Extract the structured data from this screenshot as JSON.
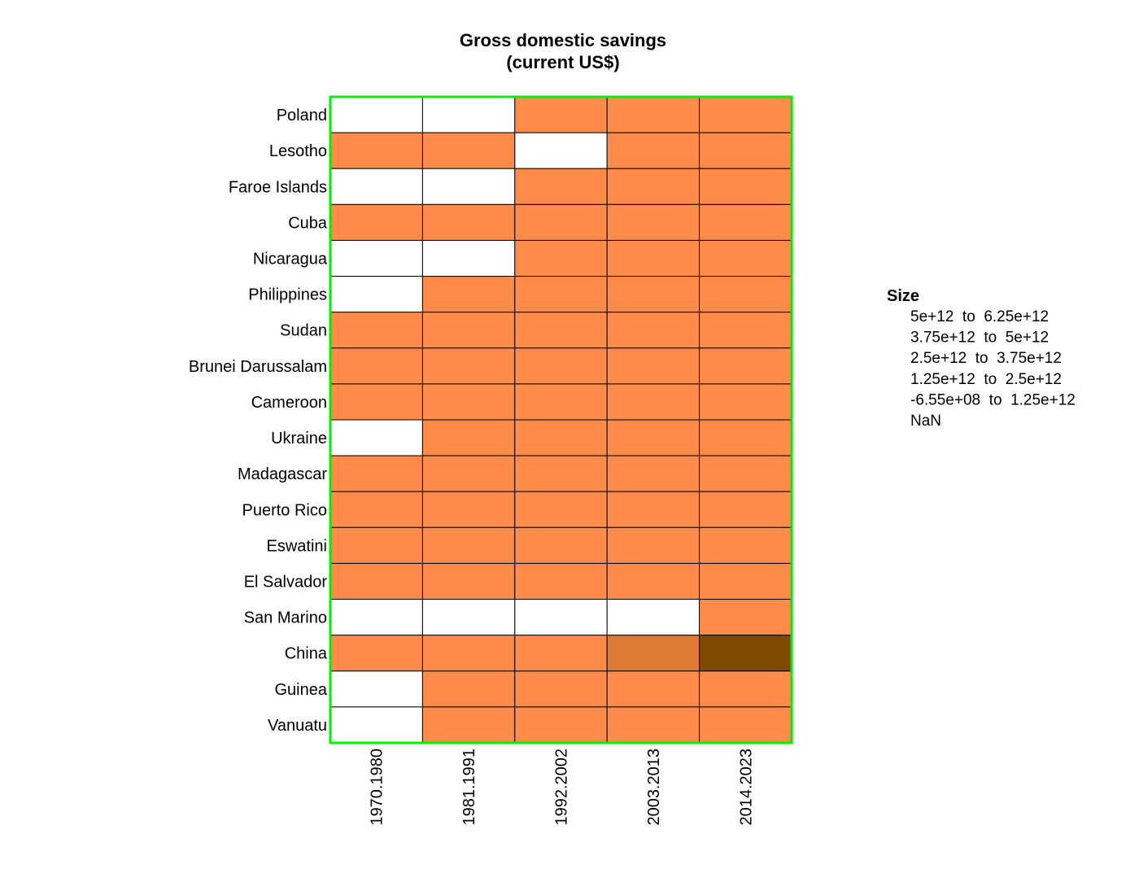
{
  "chart_data": {
    "type": "heatmap",
    "title_lines": [
      "Gross domestic savings",
      "(current US$)"
    ],
    "columns": [
      "1970.1980",
      "1981.1991",
      "1992.2002",
      "2003.2013",
      "2014.2023"
    ],
    "rows": [
      "Poland",
      "Lesotho",
      "Faroe Islands",
      "Cuba",
      "Nicaragua",
      "Philippines",
      "Sudan",
      "Brunei Darussalam",
      "Cameroon",
      "Ukraine",
      "Madagascar",
      "Puerto Rico",
      "Eswatini",
      "El Salvador",
      "San Marino",
      "China",
      "Guinea",
      "Vanuatu"
    ],
    "cell_bins": [
      [
        "NaN",
        "NaN",
        "-6.55e+08 to 1.25e+12",
        "-6.55e+08 to 1.25e+12",
        "-6.55e+08 to 1.25e+12"
      ],
      [
        "-6.55e+08 to 1.25e+12",
        "-6.55e+08 to 1.25e+12",
        "NaN",
        "-6.55e+08 to 1.25e+12",
        "-6.55e+08 to 1.25e+12"
      ],
      [
        "NaN",
        "NaN",
        "-6.55e+08 to 1.25e+12",
        "-6.55e+08 to 1.25e+12",
        "-6.55e+08 to 1.25e+12"
      ],
      [
        "-6.55e+08 to 1.25e+12",
        "-6.55e+08 to 1.25e+12",
        "-6.55e+08 to 1.25e+12",
        "-6.55e+08 to 1.25e+12",
        "-6.55e+08 to 1.25e+12"
      ],
      [
        "NaN",
        "NaN",
        "-6.55e+08 to 1.25e+12",
        "-6.55e+08 to 1.25e+12",
        "-6.55e+08 to 1.25e+12"
      ],
      [
        "NaN",
        "-6.55e+08 to 1.25e+12",
        "-6.55e+08 to 1.25e+12",
        "-6.55e+08 to 1.25e+12",
        "-6.55e+08 to 1.25e+12"
      ],
      [
        "-6.55e+08 to 1.25e+12",
        "-6.55e+08 to 1.25e+12",
        "-6.55e+08 to 1.25e+12",
        "-6.55e+08 to 1.25e+12",
        "-6.55e+08 to 1.25e+12"
      ],
      [
        "-6.55e+08 to 1.25e+12",
        "-6.55e+08 to 1.25e+12",
        "-6.55e+08 to 1.25e+12",
        "-6.55e+08 to 1.25e+12",
        "-6.55e+08 to 1.25e+12"
      ],
      [
        "-6.55e+08 to 1.25e+12",
        "-6.55e+08 to 1.25e+12",
        "-6.55e+08 to 1.25e+12",
        "-6.55e+08 to 1.25e+12",
        "-6.55e+08 to 1.25e+12"
      ],
      [
        "NaN",
        "-6.55e+08 to 1.25e+12",
        "-6.55e+08 to 1.25e+12",
        "-6.55e+08 to 1.25e+12",
        "-6.55e+08 to 1.25e+12"
      ],
      [
        "-6.55e+08 to 1.25e+12",
        "-6.55e+08 to 1.25e+12",
        "-6.55e+08 to 1.25e+12",
        "-6.55e+08 to 1.25e+12",
        "-6.55e+08 to 1.25e+12"
      ],
      [
        "-6.55e+08 to 1.25e+12",
        "-6.55e+08 to 1.25e+12",
        "-6.55e+08 to 1.25e+12",
        "-6.55e+08 to 1.25e+12",
        "-6.55e+08 to 1.25e+12"
      ],
      [
        "-6.55e+08 to 1.25e+12",
        "-6.55e+08 to 1.25e+12",
        "-6.55e+08 to 1.25e+12",
        "-6.55e+08 to 1.25e+12",
        "-6.55e+08 to 1.25e+12"
      ],
      [
        "-6.55e+08 to 1.25e+12",
        "-6.55e+08 to 1.25e+12",
        "-6.55e+08 to 1.25e+12",
        "-6.55e+08 to 1.25e+12",
        "-6.55e+08 to 1.25e+12"
      ],
      [
        "NaN",
        "NaN",
        "NaN",
        "NaN",
        "-6.55e+08 to 1.25e+12"
      ],
      [
        "-6.55e+08 to 1.25e+12",
        "-6.55e+08 to 1.25e+12",
        "-6.55e+08 to 1.25e+12",
        "1.25e+12 to 2.5e+12",
        "5e+12 to 6.25e+12"
      ],
      [
        "NaN",
        "-6.55e+08 to 1.25e+12",
        "-6.55e+08 to 1.25e+12",
        "-6.55e+08 to 1.25e+12",
        "-6.55e+08 to 1.25e+12"
      ],
      [
        "NaN",
        "-6.55e+08 to 1.25e+12",
        "-6.55e+08 to 1.25e+12",
        "-6.55e+08 to 1.25e+12",
        "-6.55e+08 to 1.25e+12"
      ]
    ],
    "legend": {
      "title": "Size",
      "position": "right",
      "entries": [
        {
          "label": "5e+12  to  6.25e+12",
          "color": "#7f4a00"
        },
        {
          "label": "3.75e+12  to  5e+12",
          "color": "#a35f10"
        },
        {
          "label": "2.5e+12  to  3.75e+12",
          "color": "#c06c20"
        },
        {
          "label": "1.25e+12  to  2.5e+12",
          "color": "#dd7a35"
        },
        {
          "label": "-6.55e+08  to  1.25e+12",
          "color": "#ff8c4a"
        },
        {
          "label": "NaN",
          "color": "#ffffff"
        }
      ]
    },
    "colors": {
      "5e+12 to 6.25e+12": "#7f4a00",
      "3.75e+12 to 5e+12": "#a35f10",
      "2.5e+12 to 3.75e+12": "#c06c20",
      "1.25e+12 to 2.5e+12": "#dd7a35",
      "-6.55e+08 to 1.25e+12": "#ff8c4a",
      "NaN": "#ffffff"
    },
    "frame_color": "#00ee00",
    "grid_line_color": "#000000"
  }
}
